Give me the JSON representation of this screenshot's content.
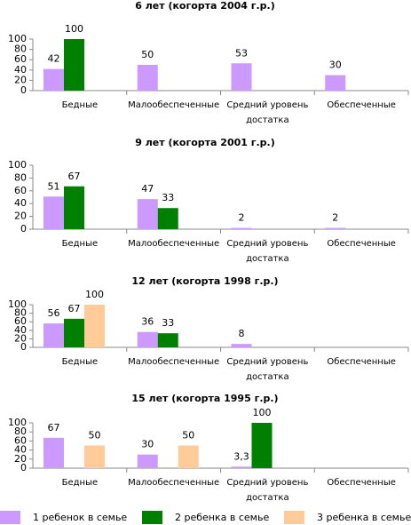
{
  "legend": {
    "items": [
      {
        "name": "1 ребенок в семье",
        "color": "#cc99ff"
      },
      {
        "name": "2 ребенка в семье",
        "color": "#008000"
      },
      {
        "name": "3 ребенка в семье",
        "color": "#ffcc99"
      }
    ]
  },
  "chart_data": [
    {
      "type": "bar",
      "title": "6 лет (когорта 2004 г.р.)",
      "categories": [
        "Бедные",
        "Малообеспеченные",
        "Средний уровень достатка",
        "Обеспеченные"
      ],
      "series": [
        {
          "values": [
            42,
            50,
            53,
            30
          ]
        },
        {
          "values": [
            100,
            null,
            null,
            null
          ]
        },
        {
          "values": [
            null,
            null,
            null,
            null
          ]
        }
      ],
      "ylim": [
        0,
        100
      ],
      "yticks": [
        0,
        20,
        40,
        60,
        80,
        100
      ]
    },
    {
      "type": "bar",
      "title": "9 лет (когорта 2001 г.р.)",
      "categories": [
        "Бедные",
        "Малообеспеченные",
        "Средний уровень достатка",
        "Обеспеченные"
      ],
      "series": [
        {
          "values": [
            51,
            47,
            2,
            2
          ]
        },
        {
          "values": [
            67,
            33,
            null,
            null
          ]
        },
        {
          "values": [
            null,
            null,
            null,
            null
          ]
        }
      ],
      "ylim": [
        0,
        100
      ],
      "yticks": [
        0,
        20,
        40,
        60,
        80,
        100
      ]
    },
    {
      "type": "bar",
      "title": "12 лет (когорта 1998 г.р.)",
      "categories": [
        "Бедные",
        "Малообеспеченные",
        "Средний уровень достатка",
        "Обеспеченные"
      ],
      "series": [
        {
          "values": [
            56,
            36,
            8,
            null
          ]
        },
        {
          "values": [
            67,
            33,
            null,
            null
          ]
        },
        {
          "values": [
            100,
            null,
            null,
            null
          ]
        }
      ],
      "ylim": [
        0,
        100
      ],
      "yticks": [
        0,
        20,
        40,
        60,
        80,
        100
      ]
    },
    {
      "type": "bar",
      "title": "15 лет (когорта 1995 г.р.)",
      "categories": [
        "Бедные",
        "Малообеспеченные",
        "Средний уровень достатка",
        "Обеспеченные"
      ],
      "series": [
        {
          "values": [
            67,
            30,
            3.3,
            null
          ],
          "value_labels": [
            "67",
            "30",
            "3,3",
            null
          ]
        },
        {
          "values": [
            null,
            null,
            100,
            null
          ]
        },
        {
          "values": [
            50,
            50,
            null,
            null
          ]
        }
      ],
      "ylim": [
        0,
        100
      ],
      "yticks": [
        0,
        20,
        40,
        60,
        80,
        100
      ]
    }
  ]
}
